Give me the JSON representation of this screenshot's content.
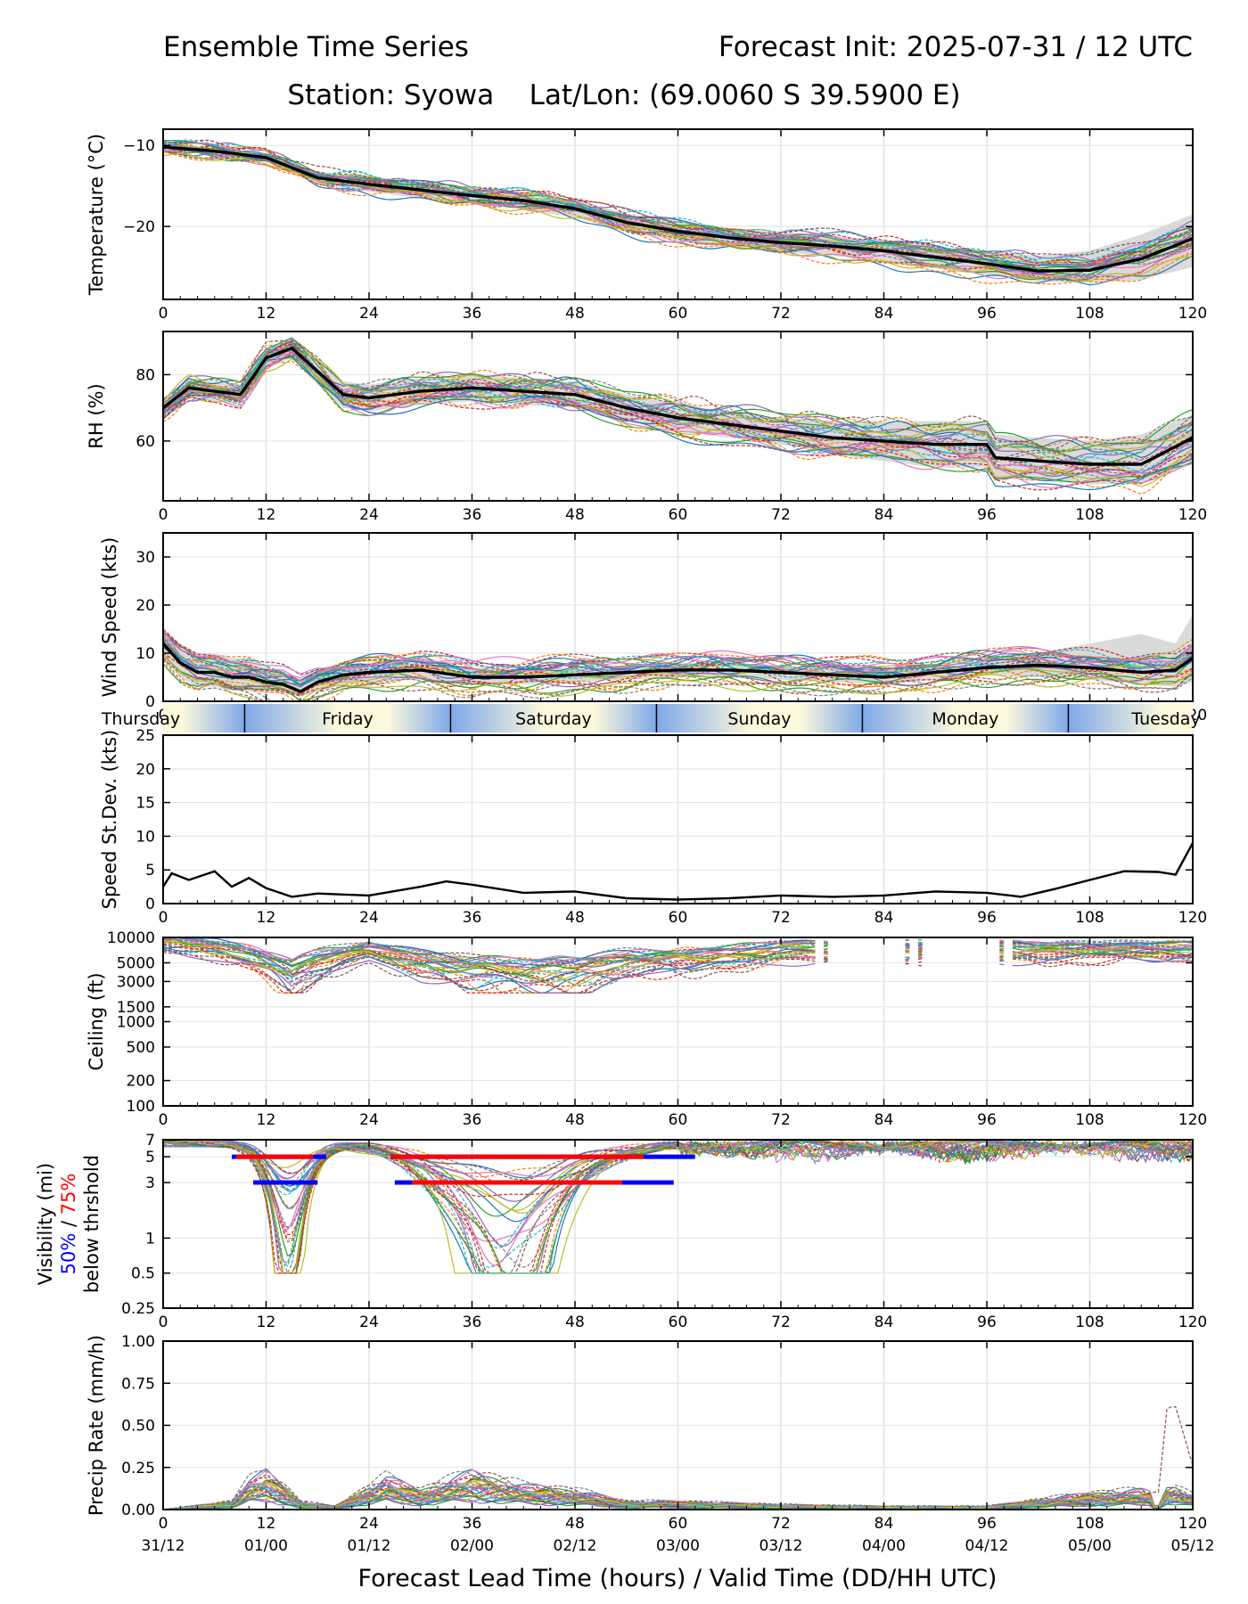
{
  "header": {
    "title_left": "Ensemble Time Series",
    "title_right": "Forecast Init: 2025-07-31 / 12 UTC",
    "subtitle": "Station: Syowa    Lat/Lon: (69.0060 S 39.5900 E)"
  },
  "xaxis": {
    "ticks": [
      0,
      12,
      24,
      36,
      48,
      60,
      72,
      84,
      96,
      108,
      120
    ],
    "valid_times": [
      "31/12",
      "01/00",
      "01/12",
      "02/00",
      "02/12",
      "03/00",
      "03/12",
      "04/00",
      "04/12",
      "05/00",
      "05/12"
    ],
    "label": "Forecast Lead Time (hours) / Valid Time (DD/HH UTC)"
  },
  "colors": {
    "mean": "#000000",
    "spread": "#d3d3d3",
    "vis50": "#0000ff",
    "vis75": "#ff0000",
    "day_blue": "#7fa8e8",
    "day_cream": "#fbf8dc",
    "members": [
      "#1f77b4",
      "#ff7f0e",
      "#2ca02c",
      "#d62728",
      "#9467bd",
      "#8c564b",
      "#e377c2",
      "#7f7f7f",
      "#bcbd22",
      "#17becf"
    ]
  },
  "day_bar": {
    "days": [
      {
        "name": "Thursday",
        "start": 0,
        "end": 9.5
      },
      {
        "name": "Friday",
        "start": 9.5,
        "end": 33.5
      },
      {
        "name": "Saturday",
        "start": 33.5,
        "end": 57.5
      },
      {
        "name": "Sunday",
        "start": 57.5,
        "end": 81.5
      },
      {
        "name": "Monday",
        "start": 81.5,
        "end": 105.5
      },
      {
        "name": "Tuesday",
        "start": 105.5,
        "end": 120
      }
    ]
  },
  "chart_data": [
    {
      "id": "temperature",
      "type": "line",
      "ylabel": "Temperature (°C)",
      "ylim": [
        -29,
        -8
      ],
      "yticks": [
        -10,
        -20
      ],
      "ytick_labels": [
        "−10",
        "−20"
      ],
      "x": [
        0,
        6,
        12,
        18,
        24,
        30,
        36,
        42,
        48,
        54,
        60,
        66,
        72,
        78,
        84,
        90,
        96,
        102,
        108,
        114,
        120
      ],
      "mean": [
        -10.2,
        -10.7,
        -11.5,
        -14.0,
        -14.8,
        -15.5,
        -16.2,
        -16.8,
        -17.8,
        -19.5,
        -20.6,
        -21.4,
        -22.0,
        -22.4,
        -23.0,
        -23.8,
        -24.6,
        -25.5,
        -25.4,
        -24.0,
        -21.5
      ],
      "spread_upper": [
        -9.8,
        -10.3,
        -11.0,
        -13.2,
        -13.9,
        -14.6,
        -15.2,
        -15.7,
        -16.7,
        -18.4,
        -19.3,
        -20.2,
        -20.8,
        -21.2,
        -21.7,
        -22.4,
        -23.2,
        -23.6,
        -23.0,
        -21.0,
        -18.5
      ],
      "spread_lower": [
        -10.6,
        -11.1,
        -12.0,
        -14.8,
        -15.7,
        -16.5,
        -17.2,
        -17.9,
        -18.9,
        -20.6,
        -21.9,
        -22.6,
        -23.2,
        -23.6,
        -24.3,
        -25.2,
        -26.0,
        -26.8,
        -26.9,
        -26.6,
        -25.0
      ]
    },
    {
      "id": "rh",
      "type": "line",
      "ylabel": "RH (%)",
      "ylim": [
        42,
        93
      ],
      "yticks": [
        60,
        80
      ],
      "ytick_labels": [
        "60",
        "80"
      ],
      "x": [
        0,
        3,
        6,
        9,
        12,
        15,
        18,
        21,
        24,
        30,
        36,
        42,
        48,
        54,
        60,
        66,
        72,
        78,
        84,
        90,
        96,
        97,
        102,
        108,
        114,
        120
      ],
      "mean": [
        70,
        76,
        75,
        74,
        85,
        88,
        81,
        74,
        73,
        75,
        76,
        75,
        74,
        70,
        67,
        65,
        63,
        61,
        60,
        59,
        59,
        55,
        54,
        53,
        53,
        61
      ],
      "spread_upper": [
        73,
        79,
        78,
        77,
        88,
        91,
        85,
        78,
        77,
        79,
        80,
        79,
        78,
        74,
        71,
        69,
        67,
        66,
        66,
        66,
        66,
        62,
        61,
        60,
        62,
        68
      ],
      "spread_lower": [
        67,
        73,
        72,
        71,
        82,
        85,
        77,
        70,
        69,
        71,
        72,
        71,
        70,
        66,
        63,
        61,
        59,
        56,
        54,
        52,
        52,
        49,
        48,
        47,
        47,
        53
      ]
    },
    {
      "id": "wind",
      "type": "line",
      "ylabel": "Wind Speed (kts)",
      "ylim": [
        0,
        35
      ],
      "yticks": [
        0,
        10,
        20,
        30
      ],
      "ytick_labels": [
        "0",
        "10",
        "20",
        "30"
      ],
      "x": [
        0,
        2,
        4,
        6,
        8,
        10,
        12,
        14,
        16,
        18,
        21,
        24,
        30,
        36,
        42,
        48,
        54,
        60,
        66,
        72,
        78,
        84,
        90,
        96,
        102,
        108,
        114,
        118,
        120
      ],
      "mean": [
        12,
        8,
        6,
        6,
        5,
        5,
        4,
        3.5,
        2,
        4,
        5.5,
        6,
        6.5,
        5,
        5,
        5.5,
        6,
        6.5,
        6.5,
        6,
        5.5,
        5,
        6,
        7,
        7.5,
        7,
        6,
        6.5,
        9
      ],
      "spread_upper": [
        15,
        12,
        10,
        10,
        9,
        9,
        7,
        6,
        4,
        6,
        7.5,
        8,
        8.5,
        7,
        7,
        7,
        7.5,
        8,
        8,
        7.5,
        7,
        7,
        7.5,
        8.5,
        10,
        12,
        14,
        12,
        18
      ],
      "spread_lower": [
        9,
        5,
        3,
        3,
        2.5,
        2,
        2,
        1.5,
        1,
        2,
        3.5,
        4,
        4.5,
        3.5,
        3.5,
        4,
        4.5,
        5,
        5,
        4.5,
        4,
        3.5,
        4.5,
        5.5,
        5,
        4.5,
        3.5,
        3,
        4
      ]
    },
    {
      "id": "speed_sd",
      "type": "line",
      "ylabel": "Speed St.Dev. (kts)",
      "ylim": [
        0,
        25
      ],
      "yticks": [
        0,
        5,
        10,
        15,
        20,
        25
      ],
      "ytick_labels": [
        "0",
        "5",
        "10",
        "15",
        "20",
        "25"
      ],
      "x": [
        0,
        1,
        3,
        6,
        8,
        10,
        12,
        15,
        18,
        24,
        30,
        33,
        36,
        42,
        48,
        54,
        60,
        66,
        72,
        78,
        84,
        90,
        96,
        100,
        104,
        108,
        112,
        116,
        118,
        120
      ],
      "sd": [
        2.5,
        4.5,
        3.5,
        4.8,
        2.5,
        3.8,
        2.3,
        1.0,
        1.5,
        1.2,
        2.5,
        3.3,
        2.8,
        1.6,
        1.8,
        0.8,
        0.6,
        0.8,
        1.2,
        1.0,
        1.2,
        1.8,
        1.6,
        1.0,
        2.2,
        3.5,
        4.8,
        4.7,
        4.3,
        9.0
      ]
    },
    {
      "id": "ceiling",
      "type": "line",
      "ylabel": "Ceiling (ft)",
      "log_scale": true,
      "ylim": [
        100,
        10000
      ],
      "yticks": [
        100,
        200,
        500,
        1000,
        1500,
        3000,
        5000,
        10000
      ],
      "ytick_labels": [
        "100",
        "200",
        "500",
        "1000",
        "1500",
        "3000",
        "5000",
        "10000"
      ],
      "x": [
        0,
        6,
        12,
        15,
        18,
        24,
        30,
        36,
        42,
        48,
        54,
        60,
        66,
        72
      ],
      "median_members": [
        9000,
        7500,
        5000,
        3500,
        5000,
        7000,
        5000,
        4200,
        3800,
        3800,
        5000,
        5500,
        6000,
        7000
      ]
    },
    {
      "id": "visibility",
      "type": "line",
      "ylabel": "Visibility (mi)",
      "log_scale": true,
      "ylabel_extra": {
        "p50": "50%",
        "sep": " / ",
        "p75": "75%",
        "tail": "below thrshold"
      },
      "ylim": [
        0.25,
        7
      ],
      "yticks": [
        0.25,
        0.5,
        1,
        3,
        5,
        7
      ],
      "ytick_labels": [
        "0.25",
        "0.5",
        "1",
        "3",
        "5",
        "7"
      ],
      "threshold_bars": [
        {
          "label": "50%",
          "threshold": 5,
          "x_start": 8,
          "x_end": 19
        },
        {
          "label": "75%",
          "threshold": 5,
          "x_start": 8.5,
          "x_end": 17.5
        },
        {
          "label": "50%",
          "threshold": 5,
          "x_start": 26.5,
          "x_end": 62
        },
        {
          "label": "75%",
          "threshold": 5,
          "x_start": 26.5,
          "x_end": 56
        },
        {
          "label": "50%",
          "threshold": 3,
          "x_start": 10.5,
          "x_end": 18
        },
        {
          "label": "50%",
          "threshold": 3,
          "x_start": 27,
          "x_end": 59.5
        },
        {
          "label": "75%",
          "threshold": 3,
          "x_start": 29,
          "x_end": 53.5
        }
      ]
    },
    {
      "id": "precip",
      "type": "line",
      "ylabel": "Precip Rate (mm/h)",
      "ylim": [
        0,
        1.0
      ],
      "yticks": [
        0,
        0.25,
        0.5,
        0.75,
        1.0
      ],
      "ytick_labels": [
        "0.00",
        "0.25",
        "0.50",
        "0.75",
        "1.00"
      ],
      "x": [
        0,
        8,
        10,
        12,
        14,
        16,
        20,
        26,
        30,
        36,
        42,
        48,
        54,
        60,
        72,
        84,
        96,
        108,
        114,
        116,
        117,
        118,
        120
      ],
      "peak_members": [
        0.0,
        0.05,
        0.18,
        0.23,
        0.15,
        0.05,
        0.02,
        0.2,
        0.12,
        0.23,
        0.15,
        0.12,
        0.05,
        0.05,
        0.03,
        0.02,
        0.02,
        0.1,
        0.12,
        0.1,
        0.55,
        0.58,
        0.35
      ]
    }
  ]
}
